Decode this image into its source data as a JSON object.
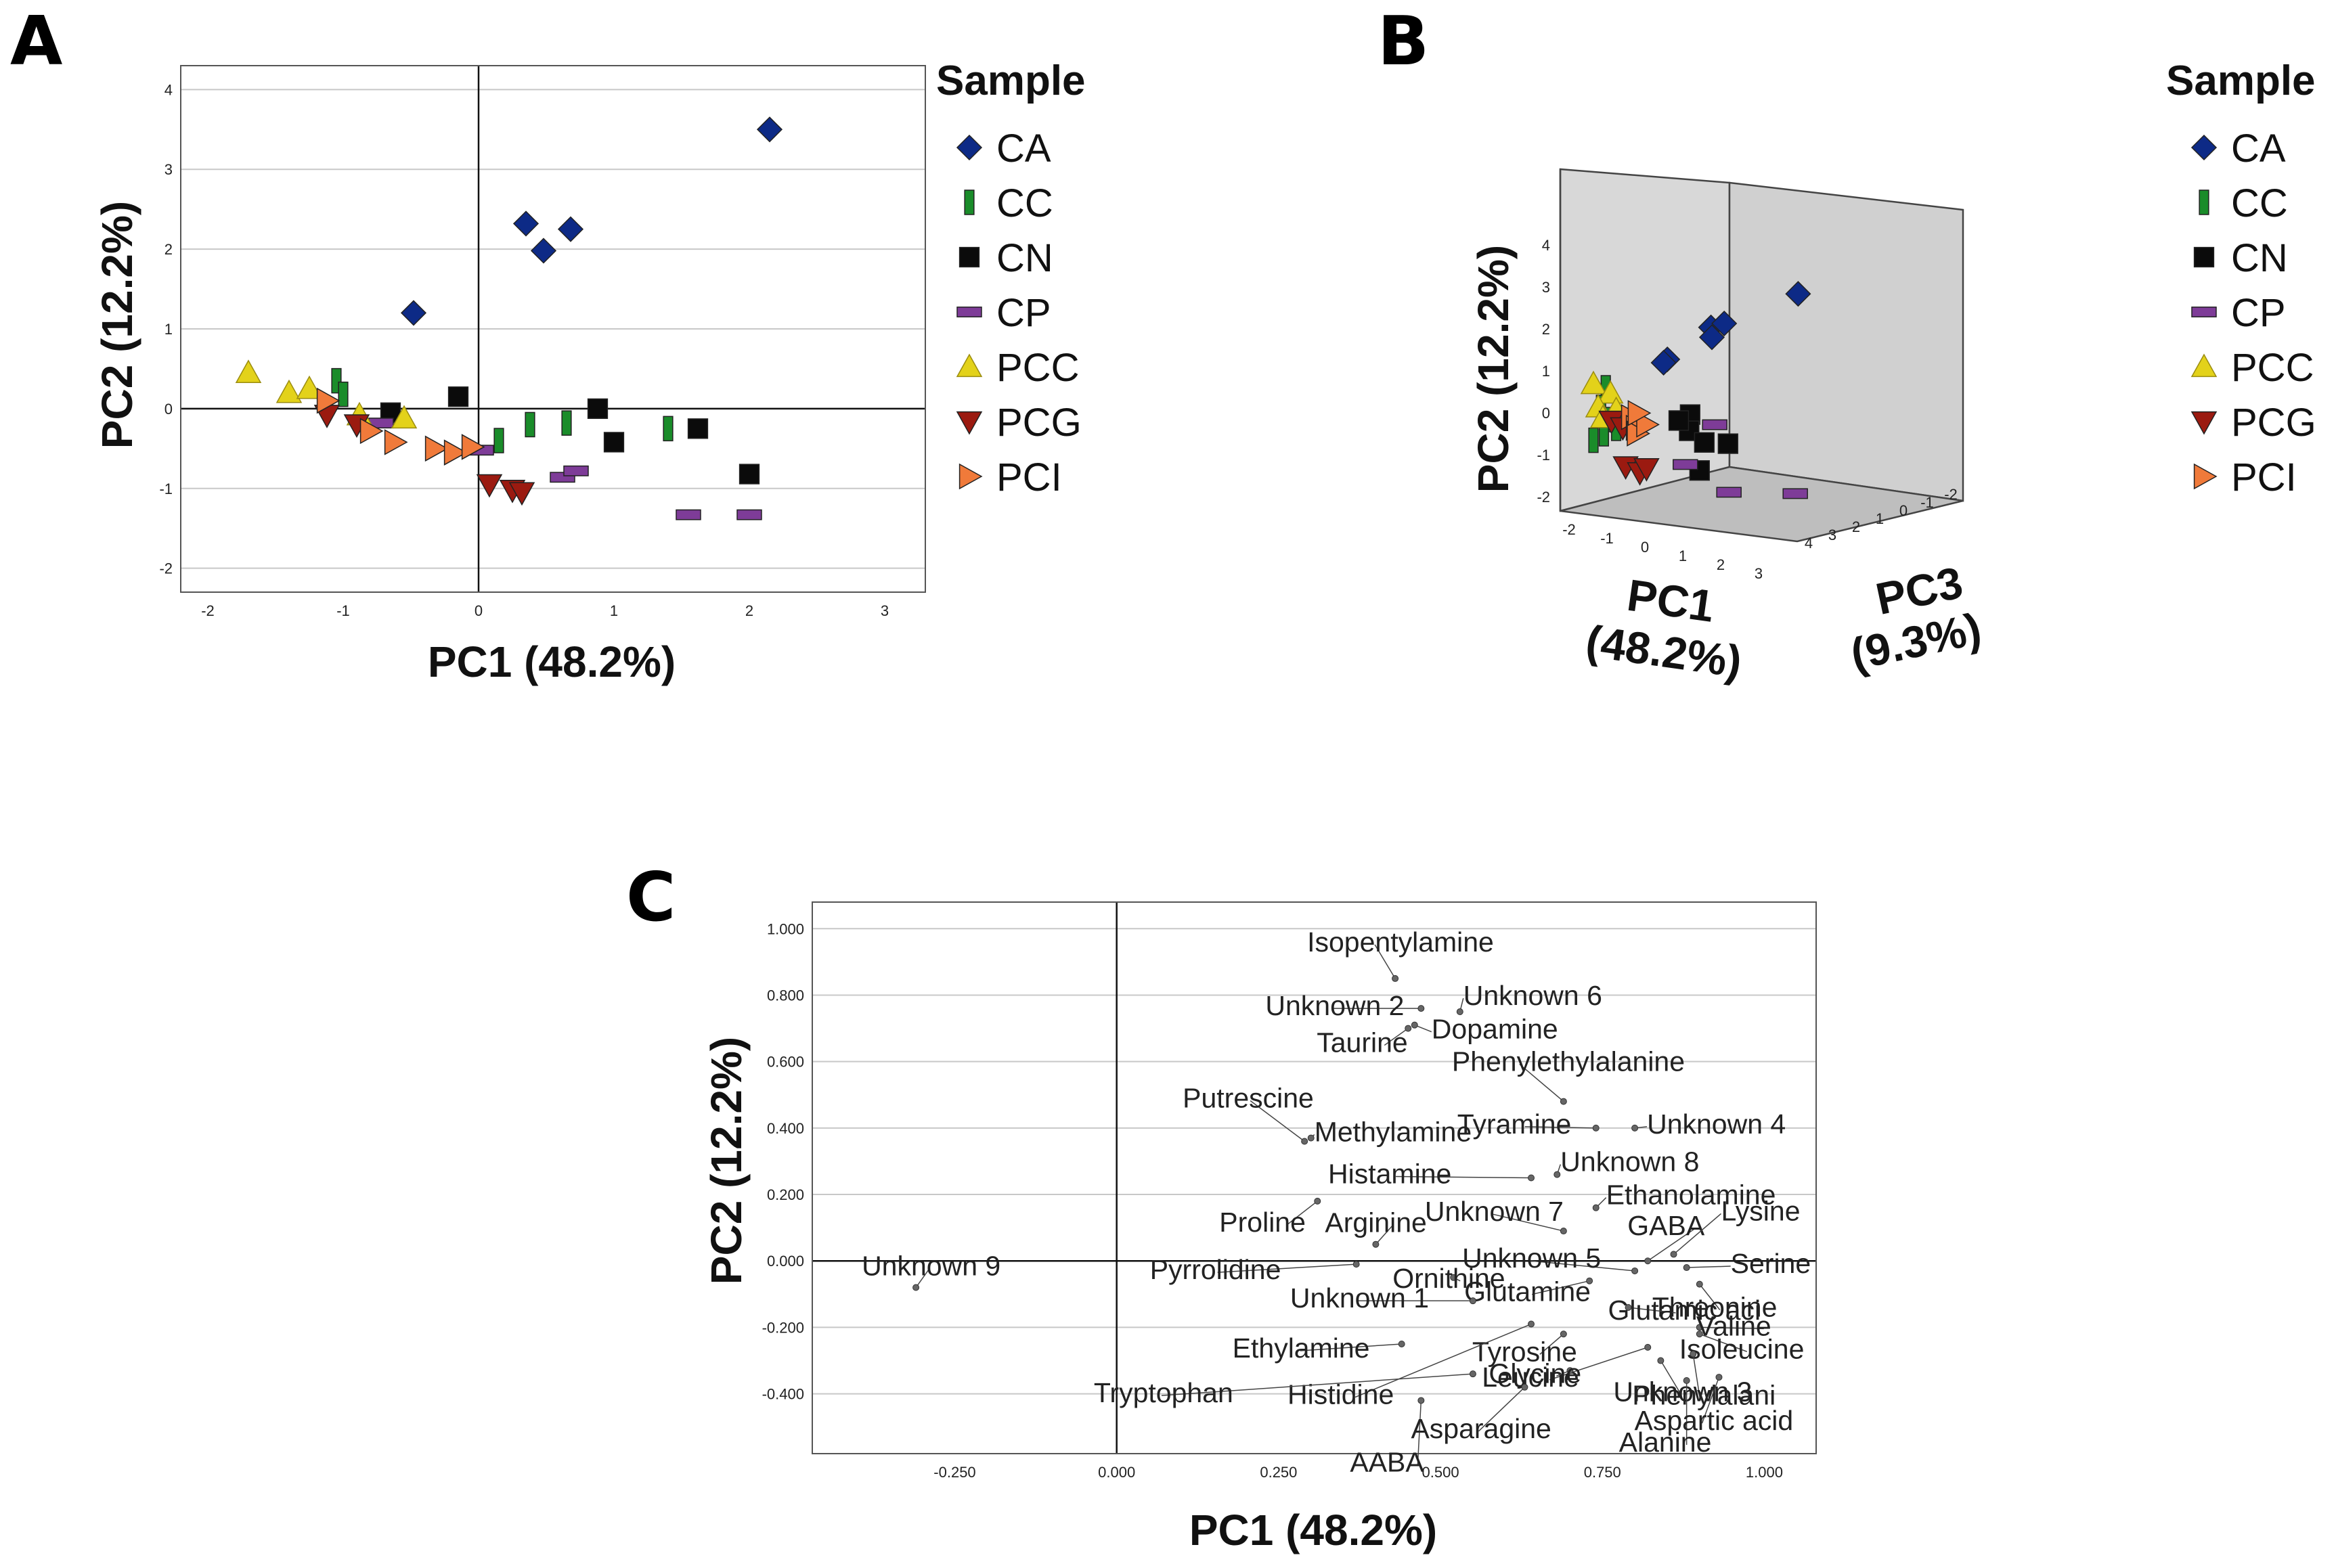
{
  "panels": {
    "a": "A",
    "b": "B",
    "c": "C"
  },
  "colors": {
    "CA": "#0d2a86",
    "CC": "#1a8c2a",
    "CN": "#0b0b0b",
    "CP": "#7e3c98",
    "PCC": "#e3d21a",
    "PCG": "#9b1a10",
    "PCI": "#f07a3a",
    "grid": "#c8c8c8",
    "box3d": "#c6c6c6"
  },
  "legend": {
    "title": "Sample",
    "items": [
      {
        "key": "CA",
        "label": "CA",
        "marker": "diamond"
      },
      {
        "key": "CC",
        "label": "CC",
        "marker": "tall-rect"
      },
      {
        "key": "CN",
        "label": "CN",
        "marker": "square"
      },
      {
        "key": "CP",
        "label": "CP",
        "marker": "wide-rect"
      },
      {
        "key": "PCC",
        "label": "PCC",
        "marker": "triangle-up"
      },
      {
        "key": "PCG",
        "label": "PCG",
        "marker": "triangle-down"
      },
      {
        "key": "PCI",
        "label": "PCI",
        "marker": "triangle-right"
      }
    ]
  },
  "chart_data": [
    {
      "type": "scatter",
      "panel": "A",
      "xlabel": "PC1 (48.2%)",
      "ylabel": "PC2 (12.2%)",
      "xlim": [
        -2.2,
        3.3
      ],
      "ylim": [
        -2.3,
        4.3
      ],
      "xticks": [
        -2,
        -1,
        0,
        1,
        2,
        3
      ],
      "yticks": [
        -2,
        -1,
        0,
        1,
        2,
        3,
        4
      ],
      "grid": "horizontal",
      "legend_position": "right",
      "series": [
        {
          "name": "CA",
          "points": [
            [
              2.15,
              3.5
            ],
            [
              0.35,
              2.32
            ],
            [
              0.48,
              1.98
            ],
            [
              0.68,
              2.25
            ],
            [
              -0.48,
              1.2
            ]
          ]
        },
        {
          "name": "CC",
          "points": [
            [
              -1.05,
              0.35
            ],
            [
              -1.0,
              0.18
            ],
            [
              0.15,
              -0.4
            ],
            [
              0.38,
              -0.2
            ],
            [
              0.65,
              -0.18
            ],
            [
              1.4,
              -0.25
            ]
          ]
        },
        {
          "name": "CN",
          "points": [
            [
              -0.65,
              -0.05
            ],
            [
              -0.15,
              0.15
            ],
            [
              0.88,
              0.0
            ],
            [
              1.0,
              -0.42
            ],
            [
              1.62,
              -0.25
            ],
            [
              2.0,
              -0.82
            ]
          ]
        },
        {
          "name": "CP",
          "points": [
            [
              -0.72,
              -0.18
            ],
            [
              0.02,
              -0.52
            ],
            [
              0.62,
              -0.86
            ],
            [
              0.72,
              -0.78
            ],
            [
              1.55,
              -1.33
            ],
            [
              2.0,
              -1.33
            ]
          ]
        },
        {
          "name": "PCC",
          "points": [
            [
              -1.7,
              0.45
            ],
            [
              -1.4,
              0.2
            ],
            [
              -1.25,
              0.25
            ],
            [
              -0.88,
              -0.08
            ],
            [
              -0.55,
              -0.12
            ]
          ]
        },
        {
          "name": "PCG",
          "points": [
            [
              -1.12,
              -0.08
            ],
            [
              -0.9,
              -0.2
            ],
            [
              0.08,
              -0.95
            ],
            [
              0.25,
              -1.02
            ],
            [
              0.32,
              -1.05
            ]
          ]
        },
        {
          "name": "PCI",
          "points": [
            [
              -1.12,
              0.1
            ],
            [
              -0.8,
              -0.28
            ],
            [
              -0.62,
              -0.42
            ],
            [
              -0.32,
              -0.5
            ],
            [
              -0.18,
              -0.55
            ],
            [
              -0.05,
              -0.48
            ]
          ]
        }
      ]
    },
    {
      "type": "scatter",
      "panel": "B",
      "xlabel": "PC1 (48.2%)",
      "ylabel": "PC2 (12.2%)",
      "zlabel": "PC3 (9.3%)",
      "xticks": [
        -2,
        -1,
        0,
        1,
        2,
        3
      ],
      "yticks": [
        -2,
        -1,
        0,
        1,
        2,
        3,
        4
      ],
      "zticks": [
        4,
        3,
        2,
        1,
        0,
        -1,
        -2
      ],
      "legend_position": "right",
      "series": [
        {
          "name": "CA",
          "points": [
            [
              2.6,
              3.5,
              -1.4
            ],
            [
              0.9,
              2.5,
              -0.6
            ],
            [
              1.0,
              2.3,
              -0.5
            ],
            [
              1.1,
              2.6,
              -0.8
            ],
            [
              0.2,
              1.7,
              0.0
            ],
            [
              0.1,
              1.6,
              0.0
            ]
          ]
        },
        {
          "name": "CC",
          "points": [
            [
              -1.2,
              0.8,
              0.3
            ],
            [
              -1.1,
              0.4,
              0.6
            ],
            [
              -1.0,
              -0.3,
              1.0
            ],
            [
              -0.8,
              0.2,
              0.8
            ],
            [
              -0.5,
              0.0,
              1.3
            ],
            [
              -0.4,
              0.1,
              1.0
            ]
          ]
        },
        {
          "name": "CN",
          "points": [
            [
              0.8,
              0.5,
              0.0
            ],
            [
              1.0,
              0.2,
              0.3
            ],
            [
              1.4,
              0.0,
              0.3
            ],
            [
              1.8,
              0.0,
              0.0
            ],
            [
              1.5,
              -0.6,
              0.6
            ],
            [
              0.5,
              0.3,
              0.0
            ]
          ]
        },
        {
          "name": "CP",
          "points": [
            [
              2.2,
              -1.0,
              0.5
            ],
            [
              3.2,
              -1.0,
              -0.5
            ],
            [
              1.2,
              -0.5,
              0.7
            ],
            [
              -0.5,
              0.2,
              0.7
            ],
            [
              1.0,
              0.2,
              -0.6
            ]
          ]
        },
        {
          "name": "PCC",
          "points": [
            [
              -1.6,
              0.8,
              0.2
            ],
            [
              -1.3,
              0.6,
              0.0
            ],
            [
              -1.4,
              0.3,
              0.3
            ],
            [
              -1.2,
              0.1,
              0.4
            ],
            [
              -1.0,
              0.3,
              0.2
            ]
          ]
        },
        {
          "name": "PCG",
          "points": [
            [
              -0.9,
              0.1,
              0.5
            ],
            [
              0.0,
              -0.7,
              1.2
            ],
            [
              0.3,
              -0.8,
              1.1
            ],
            [
              0.4,
              -0.7,
              1.0
            ],
            [
              -0.6,
              0.0,
              0.5
            ]
          ]
        },
        {
          "name": "PCI",
          "points": [
            [
              -0.6,
              0.2,
              0.2
            ],
            [
              -0.4,
              0.0,
              0.3
            ],
            [
              -0.3,
              -0.1,
              0.4
            ],
            [
              -0.2,
              0.1,
              0.2
            ],
            [
              -0.5,
              0.3,
              0.1
            ]
          ]
        }
      ]
    },
    {
      "type": "scatter",
      "panel": "C",
      "xlabel": "PC1 (48.2%)",
      "ylabel": "PC2 (12.2%)",
      "xlim": [
        -0.47,
        1.08
      ],
      "ylim": [
        -0.58,
        1.08
      ],
      "xticks": [
        "-0.250",
        "0.000",
        "0.250",
        "0.500",
        "0.750",
        "1.000"
      ],
      "yticks": [
        "-0.400",
        "-0.200",
        "0.000",
        "0.200",
        "0.400",
        "0.600",
        "0.800",
        "1.000"
      ],
      "grid": "horizontal",
      "points": [
        {
          "label": "Isopentylamine",
          "x": 0.43,
          "y": 0.85
        },
        {
          "label": "Unknown 6",
          "x": 0.53,
          "y": 0.75
        },
        {
          "label": "Unknown 2",
          "x": 0.47,
          "y": 0.76
        },
        {
          "label": "Dopamine",
          "x": 0.46,
          "y": 0.71
        },
        {
          "label": "Taurine",
          "x": 0.45,
          "y": 0.7
        },
        {
          "label": "Phenylethylalanine",
          "x": 0.69,
          "y": 0.48
        },
        {
          "label": "Putrescine",
          "x": 0.29,
          "y": 0.36
        },
        {
          "label": "Methylamine",
          "x": 0.3,
          "y": 0.37
        },
        {
          "label": "Tyramine",
          "x": 0.74,
          "y": 0.4
        },
        {
          "label": "Unknown 4",
          "x": 0.8,
          "y": 0.4
        },
        {
          "label": "Unknown 8",
          "x": 0.68,
          "y": 0.26
        },
        {
          "label": "Histamine",
          "x": 0.64,
          "y": 0.25
        },
        {
          "label": "Ethanolamine",
          "x": 0.74,
          "y": 0.16
        },
        {
          "label": "Unknown 7",
          "x": 0.69,
          "y": 0.09
        },
        {
          "label": "Proline",
          "x": 0.31,
          "y": 0.18
        },
        {
          "label": "Arginine",
          "x": 0.4,
          "y": 0.05
        },
        {
          "label": "GABA",
          "x": 0.82,
          "y": 0.0
        },
        {
          "label": "Lysine",
          "x": 0.86,
          "y": 0.02
        },
        {
          "label": "Serine",
          "x": 0.88,
          "y": -0.02
        },
        {
          "label": "Unknown 5",
          "x": 0.8,
          "y": -0.03
        },
        {
          "label": "Ornithine",
          "x": 0.52,
          "y": -0.05
        },
        {
          "label": "Pyrrolidine",
          "x": 0.37,
          "y": -0.01
        },
        {
          "label": "Threonine",
          "x": 0.9,
          "y": -0.07
        },
        {
          "label": "Glutamine",
          "x": 0.73,
          "y": -0.06
        },
        {
          "label": "Unknown 1",
          "x": 0.55,
          "y": -0.12
        },
        {
          "label": "Glutamic aci",
          "x": 0.79,
          "y": -0.14
        },
        {
          "label": "Ethylamine",
          "x": 0.44,
          "y": -0.25
        },
        {
          "label": "Tyrosine",
          "x": 0.69,
          "y": -0.22
        },
        {
          "label": "Valine",
          "x": 0.9,
          "y": -0.2
        },
        {
          "label": "Isoleucine",
          "x": 0.9,
          "y": -0.22
        },
        {
          "label": "Leucine",
          "x": 0.82,
          "y": -0.26
        },
        {
          "label": "Phenylalani",
          "x": 0.89,
          "y": -0.28
        },
        {
          "label": "Histidine",
          "x": 0.64,
          "y": -0.19
        },
        {
          "label": "Glycine",
          "x": 0.7,
          "y": -0.33
        },
        {
          "label": "Unknown 3",
          "x": 0.84,
          "y": -0.3
        },
        {
          "label": "Tryptophan",
          "x": 0.55,
          "y": -0.34
        },
        {
          "label": "Alanine",
          "x": 0.88,
          "y": -0.36
        },
        {
          "label": "AABA",
          "x": 0.47,
          "y": -0.42
        },
        {
          "label": "Asparagine",
          "x": 0.63,
          "y": -0.38
        },
        {
          "label": "Aspartic acid",
          "x": 0.93,
          "y": -0.35
        },
        {
          "label": "Unknown 9",
          "x": -0.31,
          "y": -0.08
        }
      ]
    }
  ]
}
